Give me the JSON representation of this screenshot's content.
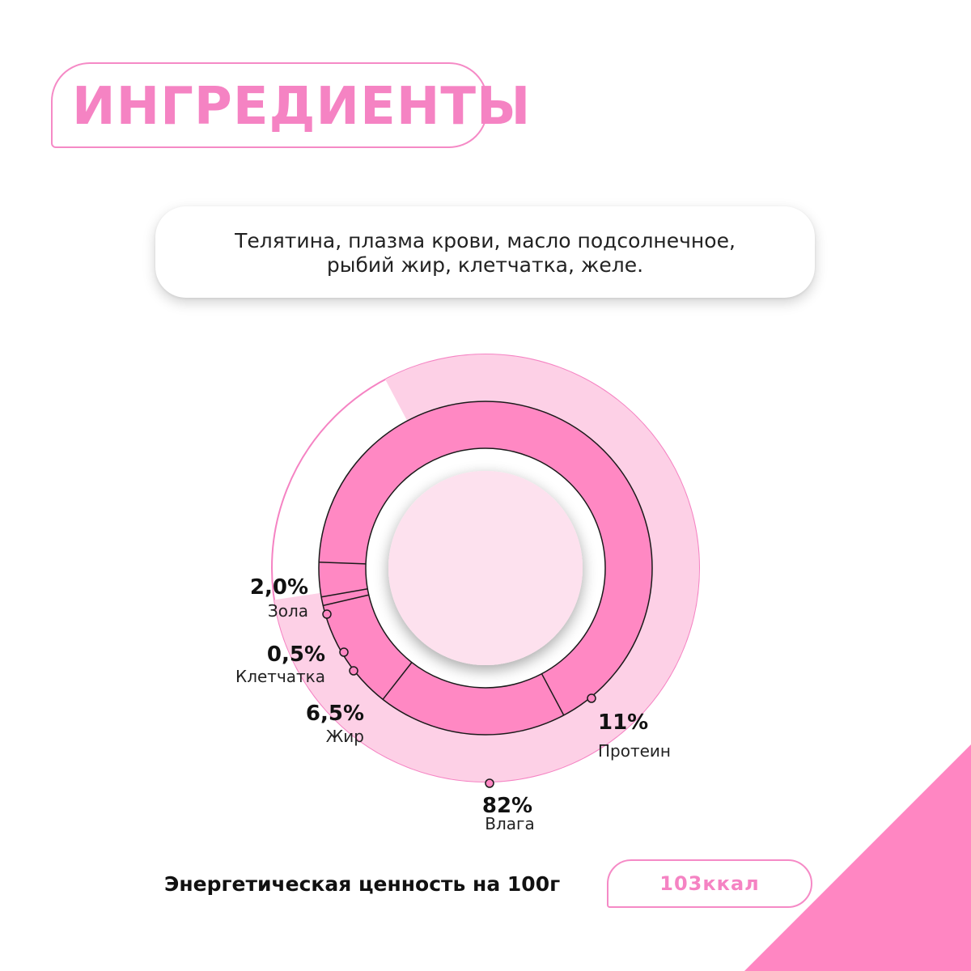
{
  "header": {
    "title": "ИНГРЕДИЕНТЫ"
  },
  "ingredients": {
    "line1": "Телятина, плазма крови, масло подсолнечное,",
    "line2": "рыбий жир, клетчатка, желе."
  },
  "colors": {
    "accent": "#f583c3",
    "ring_inner": "#ff88c3",
    "ring_outer": "#fdd0e6",
    "center": "#fde1ee",
    "corner": "#ff86c2"
  },
  "chart_data": {
    "type": "pie",
    "series": [
      {
        "values": [
          82,
          11,
          6.5,
          0.5,
          2.0
        ],
        "labels": [
          "Влага",
          "Протеин",
          "Жир",
          "Клетчатка",
          "Зола"
        ]
      }
    ],
    "labels": [
      {
        "value": "82%",
        "name": "Влага"
      },
      {
        "value": "11%",
        "name": "Протеин"
      },
      {
        "value": "6,5%",
        "name": "Жир"
      },
      {
        "value": "0,5%",
        "name": "Клетчатка"
      },
      {
        "value": "2,0%",
        "name": "Зола"
      }
    ]
  },
  "energy": {
    "label": "Энергетическая ценность на 100г",
    "value": "103ккал"
  }
}
